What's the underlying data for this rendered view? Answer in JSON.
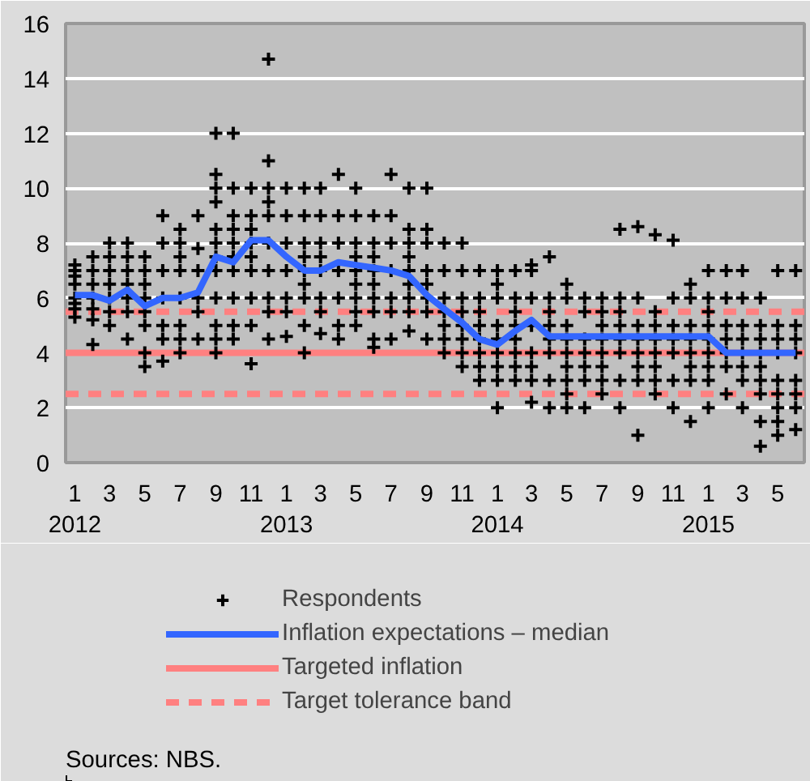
{
  "chart_data": {
    "type": "scatter",
    "xlim": [
      "2011-12-16",
      "2015-06-16"
    ],
    "ylim": [
      0,
      16
    ],
    "yticks": [
      0,
      2,
      4,
      6,
      8,
      10,
      12,
      14,
      16
    ],
    "xticks": [
      {
        "value": "2012-01",
        "label": "1\n2012"
      },
      {
        "value": "2012-03",
        "label": "3"
      },
      {
        "value": "2012-05",
        "label": "5"
      },
      {
        "value": "2012-07",
        "label": "7"
      },
      {
        "value": "2012-09",
        "label": "9"
      },
      {
        "value": "2012-11",
        "label": "11"
      },
      {
        "value": "2013-01",
        "label": "1\n2013"
      },
      {
        "value": "2013-03",
        "label": "3"
      },
      {
        "value": "2013-05",
        "label": "5"
      },
      {
        "value": "2013-07",
        "label": "7"
      },
      {
        "value": "2013-09",
        "label": "9"
      },
      {
        "value": "2013-11",
        "label": "11"
      },
      {
        "value": "2014-01",
        "label": "1\n2014"
      },
      {
        "value": "2014-03",
        "label": "3"
      },
      {
        "value": "2014-05",
        "label": "5"
      },
      {
        "value": "2014-07",
        "label": "7"
      },
      {
        "value": "2014-09",
        "label": "9"
      },
      {
        "value": "2014-11",
        "label": "11"
      },
      {
        "value": "2015-01",
        "label": "1\n2015"
      },
      {
        "value": "2015-03",
        "label": "3"
      },
      {
        "value": "2015-05",
        "label": "5"
      }
    ],
    "grid": "y",
    "legend": "bottom",
    "series": [
      {
        "name": "Respondents",
        "marker": "cross",
        "color": "#000000",
        "x": [
          "2012-01",
          "2012-01",
          "2012-01",
          "2012-01",
          "2012-01",
          "2012-01",
          "2012-01",
          "2012-01",
          "2012-02",
          "2012-02",
          "2012-02",
          "2012-02",
          "2012-02",
          "2012-02",
          "2012-02",
          "2012-03",
          "2012-03",
          "2012-03",
          "2012-03",
          "2012-03",
          "2012-03",
          "2012-03",
          "2012-04",
          "2012-04",
          "2012-04",
          "2012-04",
          "2012-04",
          "2012-04",
          "2012-04",
          "2012-05",
          "2012-05",
          "2012-05",
          "2012-05",
          "2012-05",
          "2012-05",
          "2012-05",
          "2012-05",
          "2012-06",
          "2012-06",
          "2012-06",
          "2012-06",
          "2012-06",
          "2012-06",
          "2012-06",
          "2012-07",
          "2012-07",
          "2012-07",
          "2012-07",
          "2012-07",
          "2012-07",
          "2012-07",
          "2012-07",
          "2012-08",
          "2012-08",
          "2012-08",
          "2012-08",
          "2012-08",
          "2012-08",
          "2012-09",
          "2012-09",
          "2012-09",
          "2012-09",
          "2012-09",
          "2012-09",
          "2012-09",
          "2012-09",
          "2012-09",
          "2012-09",
          "2012-09",
          "2012-09",
          "2012-10",
          "2012-10",
          "2012-10",
          "2012-10",
          "2012-10",
          "2012-10",
          "2012-10",
          "2012-10",
          "2012-10",
          "2012-10",
          "2012-11",
          "2012-11",
          "2012-11",
          "2012-11",
          "2012-11",
          "2012-11",
          "2012-11",
          "2012-11",
          "2012-11",
          "2012-12",
          "2012-12",
          "2012-12",
          "2012-12",
          "2012-12",
          "2012-12",
          "2012-12",
          "2012-12",
          "2012-12",
          "2012-12",
          "2013-01",
          "2013-01",
          "2013-01",
          "2013-01",
          "2013-01",
          "2013-01",
          "2013-01",
          "2013-02",
          "2013-02",
          "2013-02",
          "2013-02",
          "2013-02",
          "2013-02",
          "2013-02",
          "2013-02",
          "2013-02",
          "2013-03",
          "2013-03",
          "2013-03",
          "2013-03",
          "2013-03",
          "2013-03",
          "2013-03",
          "2013-03",
          "2013-04",
          "2013-04",
          "2013-04",
          "2013-04",
          "2013-04",
          "2013-04",
          "2013-04",
          "2013-05",
          "2013-05",
          "2013-05",
          "2013-05",
          "2013-05",
          "2013-05",
          "2013-05",
          "2013-05",
          "2013-05",
          "2013-06",
          "2013-06",
          "2013-06",
          "2013-06",
          "2013-06",
          "2013-06",
          "2013-06",
          "2013-06",
          "2013-06",
          "2013-07",
          "2013-07",
          "2013-07",
          "2013-07",
          "2013-07",
          "2013-07",
          "2013-07",
          "2013-08",
          "2013-08",
          "2013-08",
          "2013-08",
          "2013-08",
          "2013-08",
          "2013-08",
          "2013-08",
          "2013-08",
          "2013-09",
          "2013-09",
          "2013-09",
          "2013-09",
          "2013-09",
          "2013-09",
          "2013-09",
          "2013-09",
          "2013-10",
          "2013-10",
          "2013-10",
          "2013-10",
          "2013-10",
          "2013-10",
          "2013-10",
          "2013-11",
          "2013-11",
          "2013-11",
          "2013-11",
          "2013-11",
          "2013-11",
          "2013-11",
          "2013-11",
          "2013-12",
          "2013-12",
          "2013-12",
          "2013-12",
          "2013-12",
          "2013-12",
          "2013-12",
          "2013-12",
          "2014-01",
          "2014-01",
          "2014-01",
          "2014-01",
          "2014-01",
          "2014-01",
          "2014-01",
          "2014-01",
          "2014-01",
          "2014-02",
          "2014-02",
          "2014-02",
          "2014-02",
          "2014-02",
          "2014-02",
          "2014-02",
          "2014-02",
          "2014-03",
          "2014-03",
          "2014-03",
          "2014-03",
          "2014-03",
          "2014-03",
          "2014-03",
          "2014-03",
          "2014-04",
          "2014-04",
          "2014-04",
          "2014-04",
          "2014-04",
          "2014-04",
          "2014-04",
          "2014-04",
          "2014-05",
          "2014-05",
          "2014-05",
          "2014-05",
          "2014-05",
          "2014-05",
          "2014-05",
          "2014-05",
          "2014-05",
          "2014-06",
          "2014-06",
          "2014-06",
          "2014-06",
          "2014-06",
          "2014-06",
          "2014-06",
          "2014-07",
          "2014-07",
          "2014-07",
          "2014-07",
          "2014-07",
          "2014-07",
          "2014-07",
          "2014-07",
          "2014-08",
          "2014-08",
          "2014-08",
          "2014-08",
          "2014-08",
          "2014-08",
          "2014-08",
          "2014-08",
          "2014-09",
          "2014-09",
          "2014-09",
          "2014-09",
          "2014-09",
          "2014-09",
          "2014-09",
          "2014-09",
          "2014-10",
          "2014-10",
          "2014-10",
          "2014-10",
          "2014-10",
          "2014-10",
          "2014-10",
          "2014-10",
          "2014-11",
          "2014-11",
          "2014-11",
          "2014-11",
          "2014-11",
          "2014-11",
          "2014-11",
          "2014-12",
          "2014-12",
          "2014-12",
          "2014-12",
          "2014-12",
          "2014-12",
          "2014-12",
          "2014-12",
          "2015-01",
          "2015-01",
          "2015-01",
          "2015-01",
          "2015-01",
          "2015-01",
          "2015-01",
          "2015-01",
          "2015-01",
          "2015-02",
          "2015-02",
          "2015-02",
          "2015-02",
          "2015-02",
          "2015-02",
          "2015-02",
          "2015-03",
          "2015-03",
          "2015-03",
          "2015-03",
          "2015-03",
          "2015-03",
          "2015-03",
          "2015-03",
          "2015-04",
          "2015-04",
          "2015-04",
          "2015-04",
          "2015-04",
          "2015-04",
          "2015-04",
          "2015-04",
          "2015-04",
          "2015-05",
          "2015-05",
          "2015-05",
          "2015-05",
          "2015-05",
          "2015-05",
          "2015-05",
          "2015-05",
          "2015-05",
          "2015-06",
          "2015-06",
          "2015-06",
          "2015-06",
          "2015-06",
          "2015-06",
          "2015-06",
          "2015-06"
        ],
        "values": [
          5.3,
          5.6,
          5.8,
          6.0,
          6.5,
          6.8,
          7.0,
          7.2,
          4.3,
          5.2,
          5.6,
          6.0,
          6.5,
          7.0,
          7.5,
          5.0,
          5.5,
          6.0,
          6.5,
          7.0,
          7.5,
          8.0,
          4.5,
          5.5,
          6.0,
          6.5,
          7.0,
          7.5,
          8.0,
          3.5,
          4.0,
          5.0,
          5.5,
          6.0,
          6.5,
          7.0,
          7.5,
          3.7,
          4.5,
          5.0,
          6.0,
          7.0,
          8.0,
          9.0,
          4.0,
          4.5,
          5.0,
          6.0,
          7.0,
          7.5,
          8.0,
          8.5,
          4.5,
          5.5,
          6.0,
          7.0,
          7.8,
          9.0,
          4.0,
          4.5,
          5.0,
          6.0,
          7.0,
          7.5,
          8.0,
          8.5,
          9.5,
          10.0,
          10.5,
          12.0,
          4.5,
          5.0,
          6.0,
          7.0,
          7.5,
          8.0,
          8.5,
          9.0,
          10.0,
          12.0,
          3.6,
          5.0,
          6.0,
          7.0,
          7.5,
          8.0,
          8.5,
          9.0,
          10.0,
          4.5,
          5.5,
          6.0,
          7.0,
          8.0,
          9.0,
          9.5,
          10.0,
          11.0,
          14.7,
          4.6,
          5.5,
          6.0,
          7.0,
          8.0,
          9.0,
          10.0,
          4.0,
          5.0,
          6.0,
          6.5,
          7.0,
          7.5,
          8.0,
          9.0,
          10.0,
          4.7,
          5.5,
          6.0,
          7.0,
          7.5,
          8.0,
          9.0,
          10.0,
          4.5,
          5.0,
          6.0,
          7.0,
          8.0,
          9.0,
          10.5,
          5.0,
          5.5,
          6.0,
          6.5,
          7.0,
          7.5,
          8.0,
          9.0,
          10.0,
          4.2,
          4.5,
          5.5,
          6.0,
          6.5,
          7.0,
          7.5,
          8.0,
          9.0,
          4.5,
          5.5,
          6.0,
          7.0,
          8.0,
          9.0,
          10.5,
          4.8,
          5.5,
          6.0,
          6.5,
          7.0,
          7.5,
          8.0,
          8.5,
          10.0,
          4.5,
          5.5,
          6.0,
          6.5,
          7.0,
          8.0,
          8.5,
          10.0,
          4.0,
          4.5,
          5.0,
          5.5,
          6.0,
          7.0,
          8.0,
          3.5,
          4.0,
          4.5,
          5.0,
          5.5,
          6.0,
          7.0,
          8.0,
          3.0,
          3.5,
          4.0,
          4.5,
          5.0,
          5.5,
          6.0,
          7.0,
          2.0,
          3.0,
          3.5,
          4.0,
          4.5,
          5.0,
          6.0,
          6.5,
          7.0,
          3.0,
          3.5,
          4.0,
          4.5,
          5.0,
          5.5,
          6.0,
          7.0,
          2.2,
          3.0,
          3.5,
          4.0,
          5.0,
          6.0,
          7.0,
          7.2,
          2.0,
          3.0,
          4.0,
          4.5,
          5.0,
          5.5,
          6.0,
          7.5,
          2.0,
          2.5,
          3.0,
          3.5,
          4.0,
          4.5,
          5.0,
          6.0,
          6.5,
          2.0,
          3.0,
          3.5,
          4.0,
          4.5,
          5.5,
          6.0,
          2.5,
          3.0,
          3.5,
          4.0,
          4.5,
          5.0,
          5.5,
          6.0,
          2.0,
          3.0,
          4.0,
          4.5,
          5.0,
          5.5,
          6.0,
          8.5,
          1.0,
          3.0,
          3.5,
          4.0,
          4.5,
          5.0,
          6.0,
          8.6,
          2.5,
          3.0,
          3.5,
          4.0,
          4.5,
          5.0,
          5.5,
          8.3,
          2.0,
          3.0,
          4.0,
          4.5,
          5.0,
          6.0,
          8.1,
          1.5,
          3.0,
          3.5,
          4.0,
          4.5,
          5.0,
          6.0,
          6.5,
          2.0,
          3.0,
          3.5,
          4.0,
          4.5,
          5.0,
          5.5,
          6.0,
          7.0,
          2.5,
          3.5,
          4.0,
          4.5,
          5.0,
          6.0,
          7.0,
          2.0,
          3.0,
          3.5,
          4.0,
          4.5,
          5.0,
          6.0,
          7.0,
          0.6,
          1.5,
          2.5,
          3.0,
          3.5,
          4.0,
          4.5,
          5.0,
          6.0,
          1.0,
          1.5,
          2.0,
          2.5,
          3.0,
          4.0,
          4.5,
          5.0,
          7.0,
          1.2,
          2.0,
          2.5,
          3.0,
          4.0,
          4.5,
          5.0,
          7.0
        ]
      },
      {
        "name": "Inflation expectations – median",
        "type": "line",
        "line_style": "solid",
        "color": "#3366ff",
        "x": [
          "2012-01",
          "2012-02",
          "2012-03",
          "2012-04",
          "2012-05",
          "2012-06",
          "2012-07",
          "2012-08",
          "2012-09",
          "2012-10",
          "2012-11",
          "2012-12",
          "2013-01",
          "2013-02",
          "2013-03",
          "2013-04",
          "2013-05",
          "2013-06",
          "2013-07",
          "2013-08",
          "2013-09",
          "2013-10",
          "2013-11",
          "2013-12",
          "2014-01",
          "2014-02",
          "2014-03",
          "2014-04",
          "2014-05",
          "2014-06",
          "2014-07",
          "2014-08",
          "2014-09",
          "2014-10",
          "2014-11",
          "2014-12",
          "2015-01",
          "2015-02",
          "2015-03",
          "2015-04",
          "2015-05",
          "2015-06"
        ],
        "values": [
          6.1,
          6.1,
          5.9,
          6.3,
          5.7,
          6.0,
          6.0,
          6.2,
          7.5,
          7.3,
          8.1,
          8.1,
          7.5,
          7.0,
          7.0,
          7.3,
          7.2,
          7.1,
          7.0,
          6.8,
          6.1,
          5.6,
          5.1,
          4.5,
          4.3,
          4.8,
          5.2,
          4.6,
          4.6,
          4.6,
          4.6,
          4.6,
          4.6,
          4.6,
          4.6,
          4.6,
          4.6,
          4.0,
          4.0,
          4.0,
          4.0,
          4.0
        ]
      }
    ],
    "ref_lines": [
      {
        "axis": "y",
        "value": 4,
        "label": "Targeted inflation",
        "color": "#ff8080",
        "line_style": "solid"
      },
      {
        "axis": "y",
        "value": 5.5,
        "label": "Target tolerance band",
        "color": "#ff8080",
        "line_style": "dashed"
      },
      {
        "axis": "y",
        "value": 2.5,
        "color": "#ff8080",
        "line_style": "dashed"
      }
    ],
    "annotations": [
      "Sources: NBS."
    ]
  }
}
